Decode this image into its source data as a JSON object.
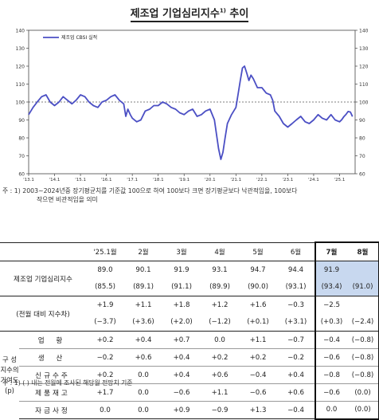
{
  "title": "제조업 기업심리지수",
  "title_sup": "1)",
  "title_suffix": " 추이",
  "chart_data": {
    "type": "line",
    "series": [
      {
        "name": "제조업 CBSI 실적",
        "color": "#4b4fc4"
      }
    ],
    "x_tick_labels": [
      "'13.1",
      "'14.1",
      "'15.1",
      "'16.1",
      "'17.1",
      "'18.1",
      "'19.1",
      "'20.1",
      "'21.1",
      "'22.1",
      "'23.1",
      "'24.1",
      "'25.1"
    ],
    "y_ticks": [
      60,
      70,
      80,
      90,
      100,
      110,
      120,
      130,
      140
    ],
    "ylim": [
      60,
      140
    ],
    "reference_line": 100,
    "x_start": 2013.0,
    "x_end": 2025.6,
    "points": [
      [
        2013.0,
        93
      ],
      [
        2013.17,
        97
      ],
      [
        2013.33,
        100
      ],
      [
        2013.5,
        103
      ],
      [
        2013.67,
        104
      ],
      [
        2013.83,
        100
      ],
      [
        2014.0,
        98
      ],
      [
        2014.17,
        100
      ],
      [
        2014.33,
        103
      ],
      [
        2014.5,
        101
      ],
      [
        2014.67,
        99
      ],
      [
        2014.83,
        101
      ],
      [
        2015.0,
        104
      ],
      [
        2015.17,
        103
      ],
      [
        2015.33,
        100
      ],
      [
        2015.5,
        98
      ],
      [
        2015.67,
        97
      ],
      [
        2015.83,
        100
      ],
      [
        2016.0,
        101
      ],
      [
        2016.17,
        103
      ],
      [
        2016.33,
        104
      ],
      [
        2016.5,
        101
      ],
      [
        2016.67,
        99
      ],
      [
        2016.75,
        92
      ],
      [
        2016.83,
        96
      ],
      [
        2016.92,
        93
      ],
      [
        2017.0,
        91
      ],
      [
        2017.17,
        89
      ],
      [
        2017.33,
        90
      ],
      [
        2017.5,
        95
      ],
      [
        2017.67,
        96
      ],
      [
        2017.83,
        98
      ],
      [
        2018.0,
        98
      ],
      [
        2018.17,
        100
      ],
      [
        2018.33,
        99
      ],
      [
        2018.5,
        97
      ],
      [
        2018.67,
        96
      ],
      [
        2018.83,
        94
      ],
      [
        2019.0,
        93
      ],
      [
        2019.17,
        95
      ],
      [
        2019.33,
        96
      ],
      [
        2019.5,
        92
      ],
      [
        2019.67,
        93
      ],
      [
        2019.83,
        95
      ],
      [
        2020.0,
        96
      ],
      [
        2020.17,
        90
      ],
      [
        2020.25,
        82
      ],
      [
        2020.33,
        74
      ],
      [
        2020.42,
        68
      ],
      [
        2020.5,
        72
      ],
      [
        2020.58,
        80
      ],
      [
        2020.67,
        88
      ],
      [
        2020.83,
        93
      ],
      [
        2021.0,
        97
      ],
      [
        2021.08,
        104
      ],
      [
        2021.17,
        112
      ],
      [
        2021.25,
        119
      ],
      [
        2021.33,
        120
      ],
      [
        2021.42,
        116
      ],
      [
        2021.5,
        112
      ],
      [
        2021.58,
        115
      ],
      [
        2021.67,
        113
      ],
      [
        2021.83,
        108
      ],
      [
        2022.0,
        108
      ],
      [
        2022.17,
        105
      ],
      [
        2022.33,
        104
      ],
      [
        2022.42,
        101
      ],
      [
        2022.5,
        95
      ],
      [
        2022.67,
        92
      ],
      [
        2022.83,
        88
      ],
      [
        2023.0,
        86
      ],
      [
        2023.17,
        88
      ],
      [
        2023.33,
        90
      ],
      [
        2023.5,
        92
      ],
      [
        2023.67,
        89
      ],
      [
        2023.83,
        88
      ],
      [
        2024.0,
        90
      ],
      [
        2024.17,
        93
      ],
      [
        2024.33,
        91
      ],
      [
        2024.5,
        90
      ],
      [
        2024.67,
        93
      ],
      [
        2024.83,
        90
      ],
      [
        2025.0,
        89.0
      ],
      [
        2025.08,
        90.1
      ],
      [
        2025.17,
        91.9
      ],
      [
        2025.25,
        93.1
      ],
      [
        2025.33,
        94.7
      ],
      [
        2025.42,
        94.4
      ],
      [
        2025.5,
        91.9
      ]
    ]
  },
  "footnote1": "주 : 1) 2003~2024년중 장기평균치를 기준값 100으로 하여 100보다 크면 장기평균보다 낙관적임을, 100보다",
  "footnote2": "작으면 비관적임을 의미",
  "table": {
    "headers": [
      "'25.1월",
      "2월",
      "3월",
      "4월",
      "5월",
      "6월",
      "7월",
      "8월"
    ],
    "index_label": "제조업 기업심리지수",
    "index_values": [
      "89.0",
      "90.1",
      "91.9",
      "93.1",
      "94.7",
      "94.4",
      "91.9",
      ""
    ],
    "index_forecast": [
      "(85.5)",
      "(89.1)",
      "(91.1)",
      "(89.9)",
      "(90.0)",
      "(93.1)",
      "(93.4)",
      "(91.0)"
    ],
    "mom_label": "(전월 대비 지수차)",
    "mom_values": [
      "+1.9",
      "+1.1",
      "+1.8",
      "+1.2",
      "+1.6",
      "−0.3",
      "−2.5",
      ""
    ],
    "mom_forecast": [
      "(−3.7)",
      "(+3.6)",
      "(+2.0)",
      "(−1.2)",
      "(+0.1)",
      "(+3.1)",
      "(+0.3)",
      "(−2.4)"
    ],
    "contrib_group": [
      "구  성",
      "지수의",
      "기여도",
      "(p)"
    ],
    "contrib_rows": [
      {
        "label": "업 황",
        "values": [
          "+0.2",
          "+0.4",
          "+0.7",
          "0.0",
          "+1.1",
          "−0.7",
          "−0.4",
          "(−0.8)"
        ]
      },
      {
        "label": "생 산",
        "values": [
          "−0.2",
          "+0.6",
          "+0.4",
          "+0.2",
          "+0.2",
          "−0.2",
          "−0.6",
          "(−0.8)"
        ]
      },
      {
        "label": "신규수주",
        "values": [
          "+0.2",
          "0.0",
          "+0.4",
          "+0.6",
          "−0.4",
          "+0.4",
          "−0.8",
          "(−0.8)"
        ]
      },
      {
        "label": "제품재고",
        "values": [
          "+1.7",
          "0.0",
          "−0.6",
          "+1.1",
          "−0.6",
          "+0.6",
          "−0.6",
          "(0.0)"
        ]
      },
      {
        "label": "자금사정",
        "values": [
          "0.0",
          "0.0",
          "+0.9",
          "−0.9",
          "+1.3",
          "−0.4",
          "0.0",
          "(0.0)"
        ]
      }
    ],
    "footnote": "주 : 1) (   ) 내는 전월에 조사된 해당월 전망치 기준"
  }
}
